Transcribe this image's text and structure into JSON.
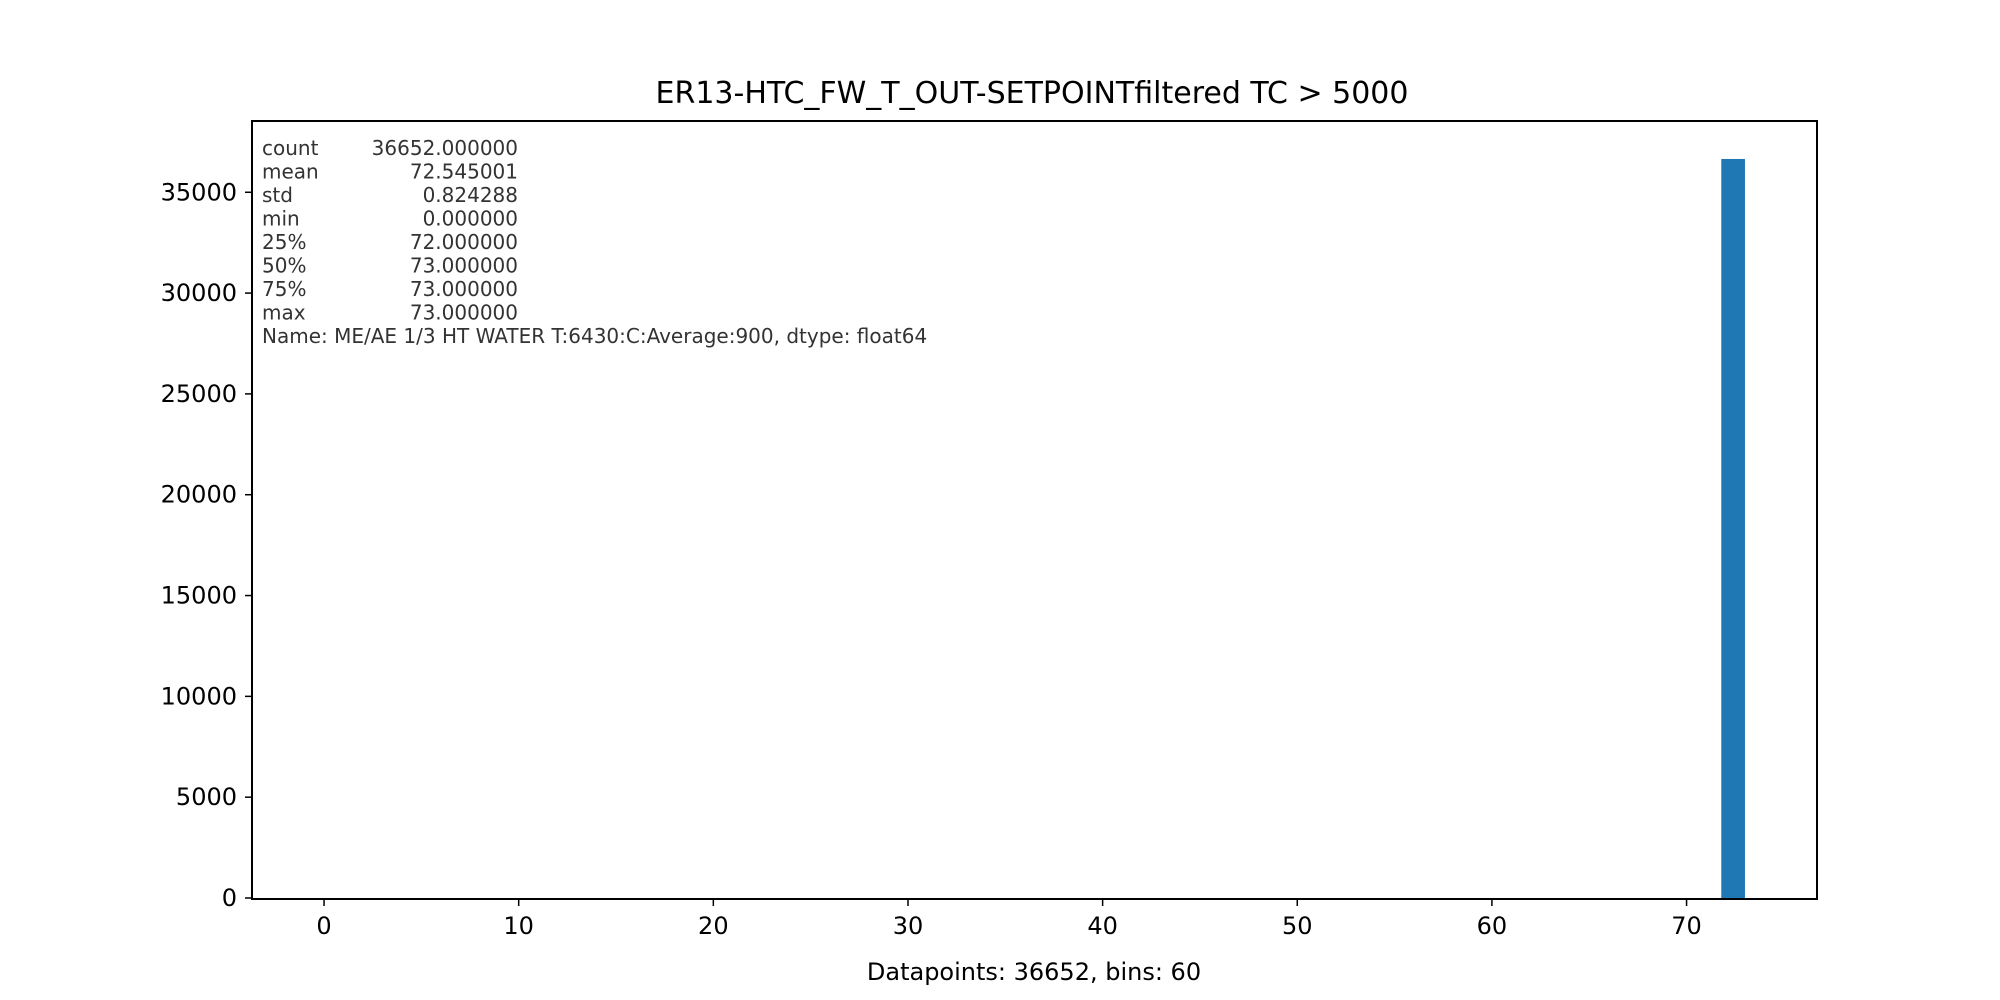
{
  "chart_data": {
    "type": "bar",
    "title": "ER13-HTC_FW_T_OUT-SETPOINTfiltered TC > 5000",
    "xlabel": "Datapoints: 36652, bins: 60",
    "ylabel": "",
    "xlim": [
      -3.65,
      76.65
    ],
    "ylim": [
      0,
      38485
    ],
    "xticks": [
      0,
      10,
      20,
      30,
      40,
      50,
      60,
      70
    ],
    "yticks": [
      0,
      5000,
      10000,
      15000,
      20000,
      25000,
      30000,
      35000
    ],
    "bin_range": [
      0,
      73
    ],
    "bins": 60,
    "bars": [
      {
        "x0": 71.783,
        "x1": 73.0,
        "value": 36652
      }
    ],
    "bar_color": "#1f77b4",
    "grid": false,
    "legend": "none",
    "stats_text": [
      {
        "key": "count",
        "value": "36652.000000"
      },
      {
        "key": "mean",
        "value": "72.545001"
      },
      {
        "key": "std",
        "value": "0.824288"
      },
      {
        "key": "min",
        "value": "0.000000"
      },
      {
        "key": "25%",
        "value": "72.000000"
      },
      {
        "key": "50%",
        "value": "73.000000"
      },
      {
        "key": "75%",
        "value": "73.000000"
      },
      {
        "key": "max",
        "value": "73.000000"
      }
    ],
    "stats_footer": "Name: ME/AE 1/3 HT WATER T:6430:C:Average:900, dtype: float64"
  }
}
